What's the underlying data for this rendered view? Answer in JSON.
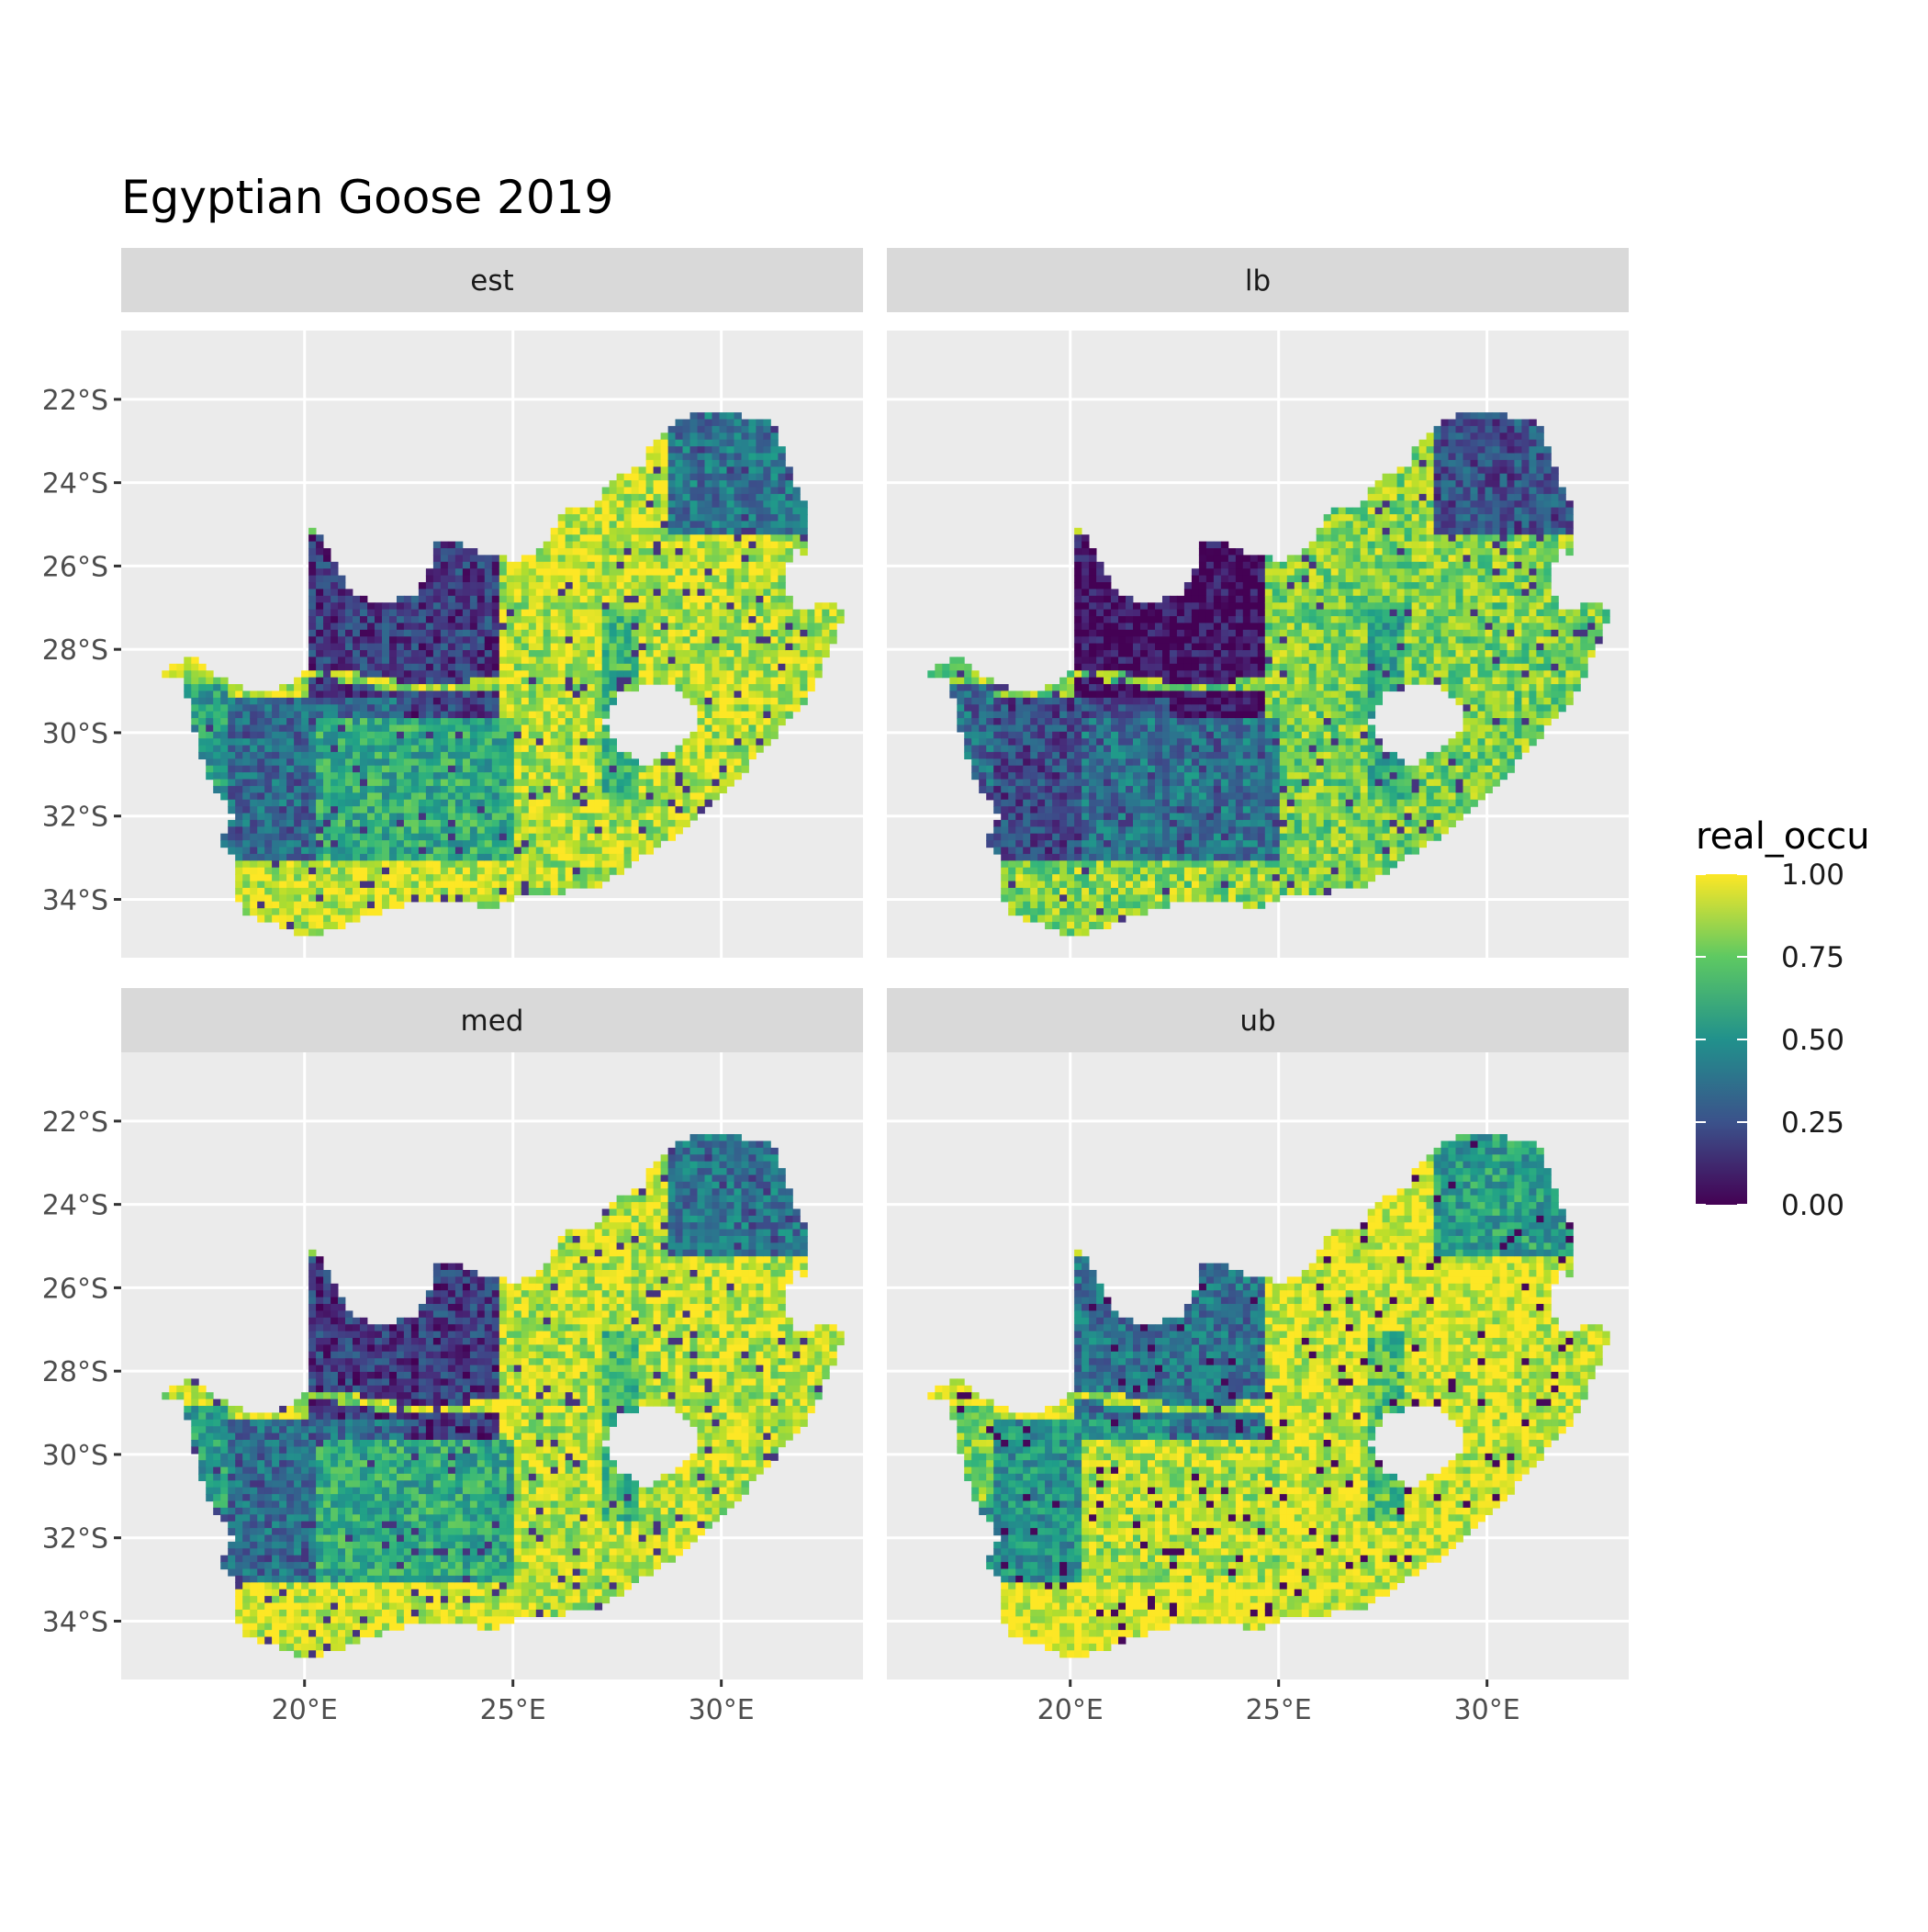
{
  "title": "Egyptian Goose 2019",
  "facets": [
    {
      "label": "est",
      "dark_level": 0.18,
      "mid_level": 0.55,
      "hot_level": 0.95
    },
    {
      "label": "lb",
      "dark_level": 0.02,
      "mid_level": 0.35,
      "hot_level": 0.85
    },
    {
      "label": "med",
      "dark_level": 0.17,
      "mid_level": 0.55,
      "hot_level": 0.96
    },
    {
      "label": "ub",
      "dark_level": 0.38,
      "mid_level": 0.8,
      "hot_level": 1.0
    }
  ],
  "x_axis": {
    "ticks": [
      "20°E",
      "25°E",
      "30°E"
    ],
    "tick_values": [
      20,
      25,
      30
    ],
    "range": [
      15.6,
      33.4
    ]
  },
  "y_axis": {
    "ticks": [
      "22°S",
      "24°S",
      "26°S",
      "28°S",
      "30°S",
      "32°S",
      "34°S"
    ],
    "tick_values": [
      -22,
      -24,
      -26,
      -28,
      -30,
      -32,
      -34
    ],
    "range": [
      -35.4,
      -20.35
    ]
  },
  "legend": {
    "title": "real_occu",
    "labels": [
      "1.00",
      "0.75",
      "0.50",
      "0.25",
      "0.00"
    ],
    "values": [
      1.0,
      0.75,
      0.5,
      0.25,
      0.0
    ],
    "colormap": "viridis",
    "colors": [
      "#440154",
      "#3b528b",
      "#21918c",
      "#5ec962",
      "#fde725"
    ]
  },
  "colors": {
    "panel_background": "#ebebeb",
    "strip_background": "#d9d9d9",
    "grid": "#ffffff",
    "text": "#4d4d4d"
  }
}
